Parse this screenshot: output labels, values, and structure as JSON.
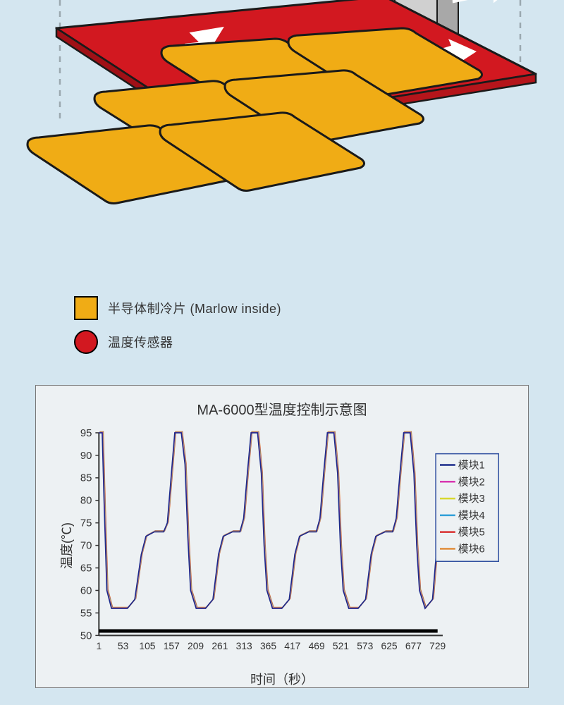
{
  "diagram": {
    "colors": {
      "background": "#d4e6f0",
      "cooling_tile": "#f0ac15",
      "sensor_plate": "#d21820",
      "outline": "#1a1a1a",
      "arrow": "#ffffff",
      "bracket": "#c8c8c8",
      "bracket_dark": "#808080",
      "dashed_line": "#9aa8af"
    },
    "legend": [
      {
        "shape": "square",
        "color": "#f0ac15",
        "label": "半导体制冷片 (Marlow inside)"
      },
      {
        "shape": "circle",
        "color": "#d21820",
        "label": "温度传感器"
      }
    ]
  },
  "chart": {
    "type": "line",
    "title": "MA-6000型温度控制示意图",
    "ylabel": "温度(℃)",
    "xlabel": "时间（秒）",
    "ylim": [
      50,
      95
    ],
    "ytick_step": 5,
    "yticks": [
      50,
      55,
      60,
      65,
      70,
      75,
      80,
      85,
      90,
      95
    ],
    "xticks": [
      1,
      53,
      105,
      157,
      209,
      261,
      313,
      365,
      417,
      469,
      521,
      573,
      625,
      677,
      729
    ],
    "xlim": [
      1,
      740
    ],
    "background_color": "#edf1f3",
    "axis_color": "#333333",
    "baseline_bar_color": "#000000",
    "label_fontsize": 18,
    "title_fontsize": 20,
    "tick_fontsize": 15,
    "legend_box": {
      "border_color": "#3050a0",
      "background": "#edf1f3"
    },
    "series": [
      {
        "name": "模块1",
        "color": "#1a2a8a"
      },
      {
        "name": "模块2",
        "color": "#d838b0"
      },
      {
        "name": "模块3",
        "color": "#d8d830"
      },
      {
        "name": "模块4",
        "color": "#30a0d8"
      },
      {
        "name": "模块5",
        "color": "#d83030"
      },
      {
        "name": "模块6",
        "color": "#e08830"
      }
    ],
    "waveform": [
      [
        1,
        95
      ],
      [
        8,
        95
      ],
      [
        12,
        80
      ],
      [
        18,
        60
      ],
      [
        28,
        56
      ],
      [
        50,
        56
      ],
      [
        62,
        56
      ],
      [
        78,
        58
      ],
      [
        92,
        68
      ],
      [
        102,
        72
      ],
      [
        120,
        73
      ],
      [
        140,
        73
      ],
      [
        148,
        75
      ],
      [
        156,
        85
      ],
      [
        164,
        95
      ],
      [
        178,
        95
      ],
      [
        186,
        88
      ],
      [
        192,
        72
      ],
      [
        198,
        60
      ],
      [
        210,
        56
      ],
      [
        230,
        56
      ],
      [
        246,
        58
      ],
      [
        258,
        68
      ],
      [
        268,
        72
      ],
      [
        288,
        73
      ],
      [
        304,
        73
      ],
      [
        312,
        76
      ],
      [
        320,
        86
      ],
      [
        328,
        95
      ],
      [
        342,
        95
      ],
      [
        350,
        86
      ],
      [
        356,
        70
      ],
      [
        362,
        60
      ],
      [
        374,
        56
      ],
      [
        394,
        56
      ],
      [
        410,
        58
      ],
      [
        422,
        68
      ],
      [
        432,
        72
      ],
      [
        452,
        73
      ],
      [
        468,
        73
      ],
      [
        476,
        76
      ],
      [
        484,
        86
      ],
      [
        492,
        95
      ],
      [
        506,
        95
      ],
      [
        514,
        86
      ],
      [
        520,
        70
      ],
      [
        526,
        60
      ],
      [
        538,
        56
      ],
      [
        558,
        56
      ],
      [
        574,
        58
      ],
      [
        586,
        68
      ],
      [
        596,
        72
      ],
      [
        616,
        73
      ],
      [
        632,
        73
      ],
      [
        640,
        76
      ],
      [
        648,
        86
      ],
      [
        656,
        95
      ],
      [
        670,
        95
      ],
      [
        678,
        86
      ],
      [
        684,
        70
      ],
      [
        690,
        60
      ],
      [
        702,
        56
      ],
      [
        718,
        58
      ],
      [
        726,
        68
      ],
      [
        734,
        72
      ],
      [
        740,
        73
      ]
    ]
  }
}
